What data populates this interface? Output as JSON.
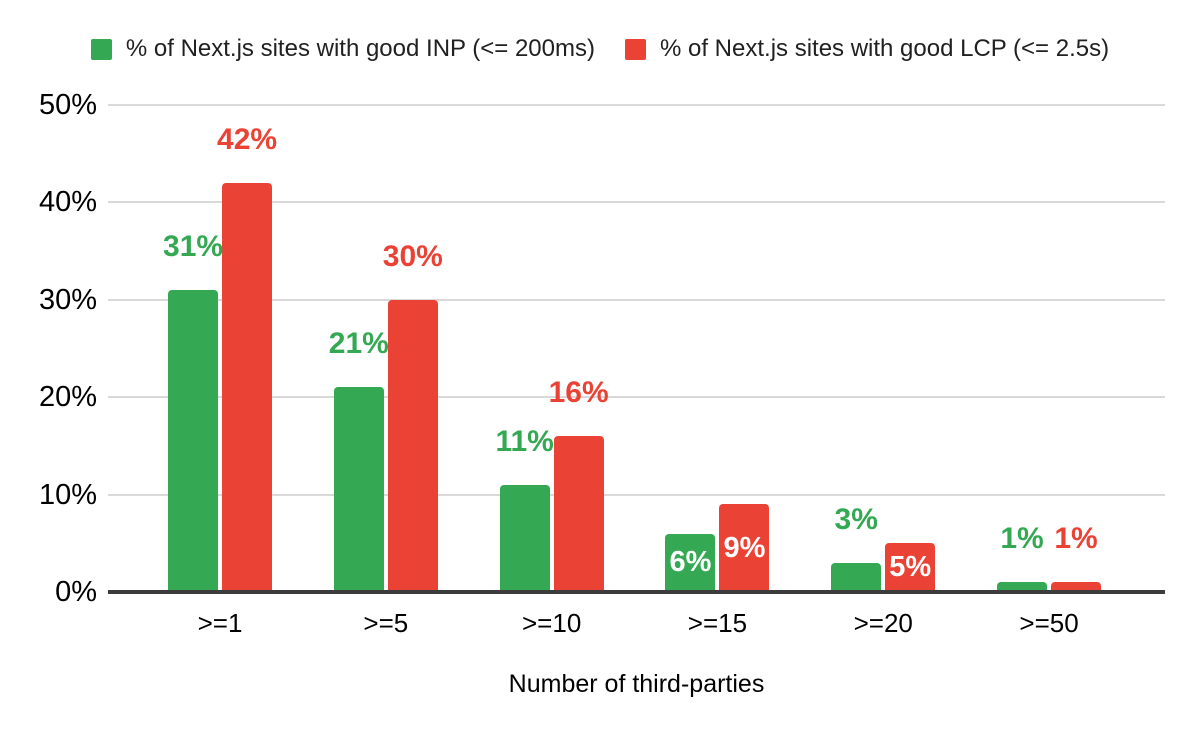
{
  "chart_data": {
    "type": "bar",
    "title": "",
    "categories": [
      ">=1",
      ">=5",
      ">=10",
      ">=15",
      ">=20",
      ">=50"
    ],
    "series": [
      {
        "name": "% of Next.js sites with good INP (<= 200ms)",
        "color": "#34a853",
        "values": [
          31,
          21,
          11,
          6,
          3,
          1
        ],
        "labels": [
          "31%",
          "21%",
          "11%",
          "6%",
          "3%",
          "1%"
        ],
        "label_placement": [
          "above",
          "above",
          "above",
          "inside",
          "above",
          "above"
        ]
      },
      {
        "name": "% of Next.js sites with good LCP (<= 2.5s)",
        "color": "#ea4335",
        "values": [
          42,
          30,
          16,
          9,
          5,
          1
        ],
        "labels": [
          "42%",
          "30%",
          "16%",
          "9%",
          "5%",
          "1%"
        ],
        "label_placement": [
          "above",
          "above",
          "above",
          "inside",
          "inside",
          "above"
        ]
      }
    ],
    "xlabel": "Number of third-parties",
    "ylabel": "",
    "ylim": [
      0,
      50
    ],
    "ytick_step": 10,
    "ytick_labels": [
      "0%",
      "10%",
      "20%",
      "30%",
      "40%",
      "50%"
    ],
    "grid": true,
    "legend_position": "top",
    "colors": {
      "grid": "#d9d9d9",
      "baseline": "#3c3c3c",
      "axis_text": "#000000",
      "inside_label": "#ffffff"
    }
  }
}
